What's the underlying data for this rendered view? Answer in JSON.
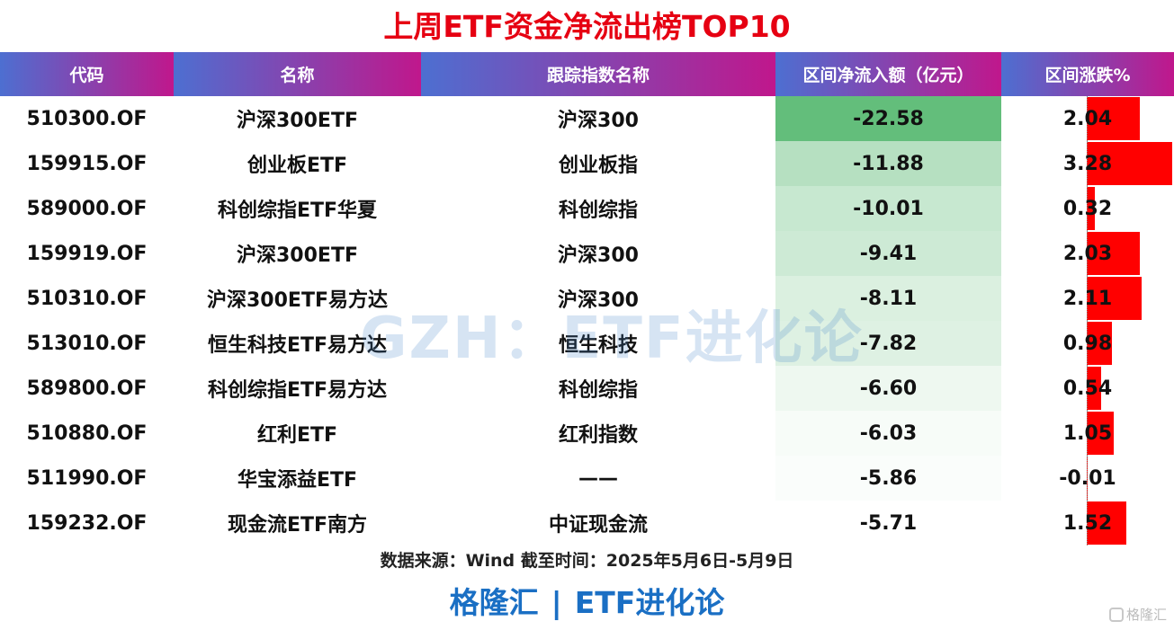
{
  "title": "上周ETF资金净流出榜TOP10",
  "chart_data": {
    "type": "table",
    "columns": [
      "代码",
      "名称",
      "跟踪指数名称",
      "区间净流入额（亿元）",
      "区间涨跌%"
    ],
    "rows": [
      {
        "code": "510300.OF",
        "name": "沪深300ETF",
        "index": "沪深300",
        "flow": "-22.58",
        "chg": "2.04"
      },
      {
        "code": "159915.OF",
        "name": "创业板ETF",
        "index": "创业板指",
        "flow": "-11.88",
        "chg": "3.28"
      },
      {
        "code": "589000.OF",
        "name": "科创综指ETF华夏",
        "index": "科创综指",
        "flow": "-10.01",
        "chg": "0.32"
      },
      {
        "code": "159919.OF",
        "name": "沪深300ETF",
        "index": "沪深300",
        "flow": "-9.41",
        "chg": "2.03"
      },
      {
        "code": "510310.OF",
        "name": "沪深300ETF易方达",
        "index": "沪深300",
        "flow": "-8.11",
        "chg": "2.11"
      },
      {
        "code": "513010.OF",
        "name": "恒生科技ETF易方达",
        "index": "恒生科技",
        "flow": "-7.82",
        "chg": "0.98"
      },
      {
        "code": "589800.OF",
        "name": "科创综指ETF易方达",
        "index": "科创综指",
        "flow": "-6.60",
        "chg": "0.54"
      },
      {
        "code": "510880.OF",
        "name": "红利ETF",
        "index": "红利指数",
        "flow": "-6.03",
        "chg": "1.05"
      },
      {
        "code": "511990.OF",
        "name": "华宝添益ETF",
        "index": "——",
        "flow": "-5.86",
        "chg": "-0.01"
      },
      {
        "code": "159232.OF",
        "name": "现金流ETF南方",
        "index": "中证现金流",
        "flow": "-5.71",
        "chg": "1.52"
      }
    ],
    "flow_color_scale": {
      "max": "#63be7b",
      "min": "#ffffff"
    },
    "chg_bar_color": "#ff0000",
    "chg_bar_max": 3.28
  },
  "watermark": "GZH：ETF进化论",
  "source": "数据来源：Wind 截至时间：2025年5月6日-5月9日",
  "brand": {
    "left": "格隆汇",
    "sep": "|",
    "right": "ETF进化论"
  },
  "logo": {
    "text": "格隆汇",
    "icon": "gelonghui-logo-icon"
  }
}
